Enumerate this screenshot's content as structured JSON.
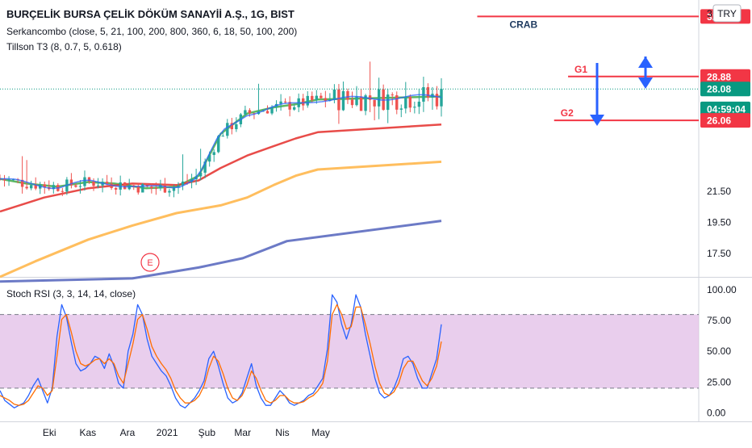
{
  "chart_data": [
    {
      "type": "candlestick",
      "title": "BURÇELİK BURSA ÇELİK DÖKÜM SANAYİİ A.Ş., 1G, BIST",
      "indicators": [
        "Serkancombo (close, 5, 21, 100, 200, 800, 360, 6, 18, 50, 100, 200)",
        "Tillson T3 (8, 0.7, 5, 0.618)"
      ],
      "currency": "TRY",
      "currency_label": "TRY",
      "top_tick": "3",
      "ylim": [
        16.0,
        33.8
      ],
      "y_ticks": [
        {
          "value": 21.5,
          "label": "21.50"
        },
        {
          "value": 19.5,
          "label": "19.50"
        },
        {
          "value": 17.5,
          "label": "17.50"
        }
      ],
      "price_labels": [
        {
          "value": 32.74,
          "label": "32.74",
          "color": "#f23645"
        },
        {
          "value": 28.88,
          "label": "28.88",
          "color": "#f23645"
        },
        {
          "value": 28.08,
          "label": "28.08",
          "color": "#089981"
        },
        {
          "value": 26.8,
          "label": "04:59:04",
          "color": "#089981"
        },
        {
          "value": 26.06,
          "label": "26.06",
          "color": "#f23645"
        }
      ],
      "horizontal_lines": [
        {
          "value": 32.74,
          "x_start": 0.683,
          "label": "CRAB"
        },
        {
          "value": 28.88,
          "x_start": 0.813,
          "label": "G1"
        },
        {
          "value": 26.06,
          "x_start": 0.793,
          "label": "G2"
        }
      ],
      "last_price_line": 28.08,
      "annotation": "E",
      "x_ticks": [
        "Eki",
        "Kas",
        "Ara",
        "2021",
        "Şub",
        "Mar",
        "Nis",
        "May"
      ],
      "colors": {
        "up": "#26a69a",
        "down": "#ef5350",
        "ma_green": "#4caf50",
        "ma_red": "#e53935",
        "ma_orange": "#ffb74d",
        "ma_blue": "#5c6bc0",
        "t3": "#2962ff"
      },
      "series": [
        {
          "points": [
            [
              0.0,
              22.3
            ],
            [
              0.06,
              22.0
            ],
            [
              0.13,
              21.8
            ],
            [
              0.2,
              22.1
            ],
            [
              0.26,
              22.0
            ],
            [
              0.33,
              21.7
            ],
            [
              0.4,
              21.8
            ],
            [
              0.45,
              22.5
            ],
            [
              0.5,
              25.2
            ],
            [
              0.56,
              26.5
            ],
            [
              0.62,
              26.9
            ],
            [
              0.67,
              27.1
            ],
            [
              0.72,
              27.4
            ],
            [
              1.0,
              27.6
            ]
          ]
        },
        {
          "points": [
            [
              0.0,
              20.2
            ],
            [
              0.1,
              21.1
            ],
            [
              0.2,
              21.7
            ],
            [
              0.3,
              22.0
            ],
            [
              0.4,
              21.9
            ],
            [
              0.45,
              22.2
            ],
            [
              0.5,
              23.0
            ],
            [
              0.56,
              23.8
            ],
            [
              0.62,
              24.4
            ],
            [
              0.67,
              24.9
            ],
            [
              0.72,
              25.3
            ],
            [
              1.0,
              25.8
            ]
          ]
        },
        {
          "points": [
            [
              0.0,
              16.0
            ],
            [
              0.08,
              17.0
            ],
            [
              0.2,
              18.4
            ],
            [
              0.3,
              19.3
            ],
            [
              0.4,
              20.1
            ],
            [
              0.5,
              20.6
            ],
            [
              0.56,
              21.1
            ],
            [
              0.62,
              21.9
            ],
            [
              0.67,
              22.5
            ],
            [
              0.72,
              22.9
            ],
            [
              1.0,
              23.4
            ]
          ]
        },
        {
          "points": [
            [
              0.0,
              15.7
            ],
            [
              0.3,
              15.9
            ],
            [
              0.45,
              16.6
            ],
            [
              0.55,
              17.2
            ],
            [
              0.65,
              18.3
            ],
            [
              1.0,
              19.6
            ]
          ]
        }
      ]
    },
    {
      "type": "line",
      "title": "Stoch RSI (3, 3, 14, 14, close)",
      "ylim": [
        -7,
        106
      ],
      "y_ticks": [
        {
          "value": 100,
          "label": "100.00"
        },
        {
          "value": 75,
          "label": "75.00"
        },
        {
          "value": 50,
          "label": "50.00"
        },
        {
          "value": 25,
          "label": "25.00"
        },
        {
          "value": 0,
          "label": "0.00"
        }
      ],
      "bands": [
        80,
        20
      ],
      "series": [
        {
          "color": "#2962ff",
          "values": [
            18,
            10,
            7,
            4,
            6,
            8,
            14,
            22,
            28,
            18,
            8,
            20,
            62,
            88,
            78,
            58,
            40,
            34,
            36,
            40,
            46,
            44,
            36,
            48,
            38,
            24,
            20,
            50,
            64,
            88,
            80,
            60,
            46,
            40,
            34,
            30,
            22,
            12,
            6,
            4,
            8,
            12,
            18,
            26,
            44,
            50,
            38,
            24,
            12,
            8,
            10,
            16,
            28,
            40,
            22,
            12,
            6,
            6,
            12,
            18,
            14,
            8,
            6,
            8,
            10,
            14,
            16,
            22,
            28,
            52,
            96,
            90,
            72,
            60,
            72,
            96,
            86,
            64,
            46,
            28,
            16,
            12,
            14,
            20,
            30,
            44,
            46,
            40,
            28,
            20,
            20,
            32,
            44,
            72
          ]
        },
        {
          "color": "#ff6d00",
          "values": [
            14,
            12,
            10,
            7,
            6,
            7,
            10,
            16,
            22,
            20,
            14,
            18,
            46,
            76,
            80,
            66,
            50,
            40,
            38,
            40,
            43,
            44,
            40,
            44,
            40,
            30,
            24,
            40,
            56,
            76,
            80,
            68,
            54,
            46,
            40,
            35,
            28,
            18,
            12,
            8,
            8,
            10,
            14,
            22,
            36,
            46,
            42,
            32,
            20,
            12,
            10,
            14,
            22,
            34,
            28,
            18,
            10,
            8,
            10,
            14,
            14,
            10,
            8,
            8,
            9,
            12,
            14,
            18,
            24,
            42,
            80,
            88,
            80,
            68,
            70,
            86,
            86,
            72,
            56,
            38,
            24,
            16,
            14,
            17,
            24,
            36,
            42,
            42,
            34,
            26,
            22,
            28,
            38,
            58
          ]
        }
      ]
    }
  ]
}
